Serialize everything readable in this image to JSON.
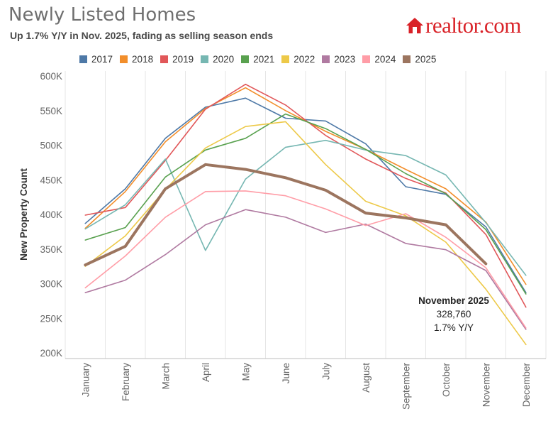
{
  "header": {
    "title": "Newly Listed Homes",
    "subtitle": "Up 1.7% Y/Y in Nov. 2025, fading as selling season ends",
    "brand": "realtor.com"
  },
  "annotation": {
    "title": "November 2025",
    "value": "328,760",
    "change": "1.7% Y/Y"
  },
  "chart_data": {
    "type": "line",
    "title": "Newly Listed Homes",
    "subtitle": "Up 1.7% Y/Y in Nov. 2025, fading as selling season ends",
    "xlabel": "",
    "ylabel": "New Property Count",
    "ylim": [
      200000,
      600000
    ],
    "yticks": [
      200000,
      250000,
      300000,
      350000,
      400000,
      450000,
      500000,
      550000,
      600000
    ],
    "ytick_labels": [
      "200K",
      "250K",
      "300K",
      "350K",
      "400K",
      "450K",
      "500K",
      "550K",
      "600K"
    ],
    "categories": [
      "January",
      "February",
      "March",
      "April",
      "May",
      "June",
      "July",
      "August",
      "September",
      "October",
      "November",
      "December"
    ],
    "legend_position": "top",
    "series": [
      {
        "name": "2017",
        "color": "#4e79a7",
        "width": 1.6,
        "values": [
          387000,
          437000,
          510000,
          555000,
          568000,
          539000,
          535000,
          502000,
          440000,
          429000,
          382000,
          287000
        ]
      },
      {
        "name": "2018",
        "color": "#f28e2b",
        "width": 1.6,
        "values": [
          380000,
          433000,
          505000,
          553000,
          583000,
          550000,
          520000,
          494000,
          465000,
          437000,
          389000,
          299000
        ]
      },
      {
        "name": "2019",
        "color": "#e15759",
        "width": 1.6,
        "values": [
          399000,
          410000,
          478000,
          552000,
          588000,
          558000,
          514000,
          480000,
          452000,
          431000,
          371000,
          266000
        ]
      },
      {
        "name": "2020",
        "color": "#76b7b2",
        "width": 1.6,
        "values": [
          379000,
          414000,
          480000,
          348000,
          451000,
          497000,
          507000,
          493000,
          485000,
          457000,
          388000,
          312000
        ]
      },
      {
        "name": "2021",
        "color": "#59a14f",
        "width": 1.6,
        "values": [
          363000,
          381000,
          454000,
          493000,
          510000,
          545000,
          524000,
          494000,
          459000,
          430000,
          378000,
          285000
        ]
      },
      {
        "name": "2022",
        "color": "#edc948",
        "width": 1.6,
        "values": [
          325000,
          369000,
          436000,
          496000,
          527000,
          534000,
          472000,
          419000,
          398000,
          360000,
          292000,
          212000
        ]
      },
      {
        "name": "2023",
        "color": "#b07aa1",
        "width": 1.6,
        "values": [
          287000,
          305000,
          342000,
          385000,
          407000,
          396000,
          374000,
          386000,
          358000,
          349000,
          319000,
          234000
        ]
      },
      {
        "name": "2024",
        "color": "#ff9da7",
        "width": 1.6,
        "values": [
          294000,
          340000,
          396000,
          433000,
          434000,
          427000,
          408000,
          384000,
          401000,
          367000,
          323000,
          236000
        ]
      },
      {
        "name": "2025",
        "color": "#9c755f",
        "width": 4,
        "values": [
          327000,
          354000,
          437000,
          472000,
          465000,
          453000,
          435000,
          402000,
          395000,
          385000,
          328760,
          null
        ]
      }
    ]
  }
}
